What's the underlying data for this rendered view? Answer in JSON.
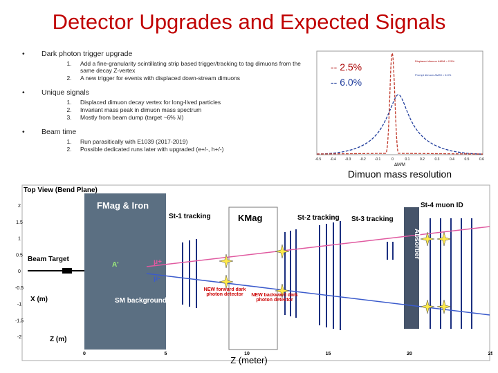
{
  "title": "Detector Upgrades and Expected Signals",
  "sections": [
    {
      "heading": "Dark photon trigger upgrade",
      "items": [
        "Add a fine-granularity scintillating strip based trigger/tracking to tag dimuons from the same decay Z-vertex",
        "A new trigger for events with displaced down-stream dimuons"
      ]
    },
    {
      "heading": "Unique signals",
      "items": [
        "Displaced dimuon decay vertex for long-lived particles",
        "Invariant mass peak in dimuon mass spectrum",
        "Mostly from beam dump (target ~6% λI)"
      ]
    },
    {
      "heading": "Beam time",
      "items": [
        "Run parasitically with E1039 (2017-2019)",
        "Possible dedicated runs later with upgraded (e+/-, h+/-)"
      ]
    }
  ],
  "inset": {
    "legend": [
      "-- 2.5%",
      "-- 6.0%"
    ],
    "plot_legend": [
      "Displaced dimuon ΔM/M = 2.5%",
      "Prompt dimuon ΔM/M = 6.0%"
    ],
    "xticks": [
      "-0.5",
      "-0.4",
      "-0.3",
      "-0.2",
      "-0.1",
      "0",
      "0.1",
      "0.2",
      "0.3",
      "0.4",
      "0.5",
      "0.6"
    ],
    "xlabel": "ΔM/M",
    "caption": "Dimuon mass resolution"
  },
  "detector": {
    "view": "Top View (Bend Plane)",
    "fmag": "FMag & Iron",
    "kmag": "KMag",
    "st1": "St-1 tracking",
    "st2": "St-2 tracking",
    "st3": "St-3 tracking",
    "st4": "St-4 muon ID",
    "absorber": "Absorber",
    "beam": "Beam",
    "target": "Target",
    "aprime": "A'",
    "mu_plus": "μ+",
    "mu_minus": "μ-",
    "sm": "SM background",
    "forward": "NEW forward dark photon detector",
    "backward": "NEW backward dark photon detector",
    "xlabel": "X (m)",
    "zlabel": "Z (m)",
    "yticks": [
      2,
      1.5,
      1,
      0.5,
      0,
      -0.5,
      -1,
      -1.5,
      -2
    ],
    "zticks": [
      0,
      5,
      10,
      15,
      20,
      25
    ],
    "bottom_label": "Z (meter)"
  }
}
